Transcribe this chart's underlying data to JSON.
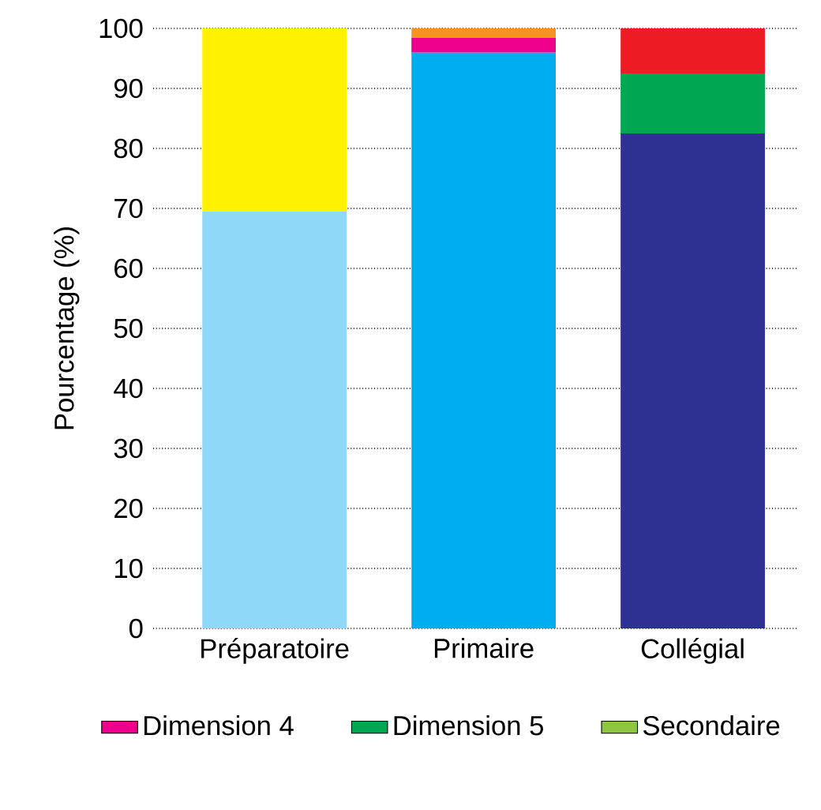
{
  "chart_data": {
    "type": "bar",
    "stacked": true,
    "ylabel": "Pourcentage (%)",
    "categories": [
      "Préparatoire",
      "Primaire",
      "Collégial"
    ],
    "series": [
      {
        "color": "#8fd8f7",
        "values": [
          69.5,
          null,
          null
        ]
      },
      {
        "color": "#00aeef",
        "values": [
          null,
          96,
          null
        ]
      },
      {
        "color": "#2e3192",
        "values": [
          null,
          null,
          82.5
        ]
      },
      {
        "color": "#fff200",
        "values": [
          30.5,
          null,
          null
        ]
      },
      {
        "name": "Dimension 4",
        "color": "#ec008c",
        "values": [
          null,
          2.5,
          null
        ]
      },
      {
        "name": "Dimension 5",
        "color": "#00a651",
        "values": [
          null,
          null,
          10
        ]
      },
      {
        "color": "#f7941d",
        "values": [
          null,
          1.5,
          null
        ]
      },
      {
        "color": "#ed1c24",
        "values": [
          null,
          null,
          7.5
        ]
      },
      {
        "name": "Secondaire",
        "color": "#8dc63f",
        "values": [
          null,
          null,
          null
        ]
      }
    ],
    "ylim": [
      0,
      100
    ],
    "yticks": [
      0,
      10,
      20,
      30,
      40,
      50,
      60,
      70,
      80,
      90,
      100
    ],
    "grid": "y",
    "legend": "bottom"
  }
}
